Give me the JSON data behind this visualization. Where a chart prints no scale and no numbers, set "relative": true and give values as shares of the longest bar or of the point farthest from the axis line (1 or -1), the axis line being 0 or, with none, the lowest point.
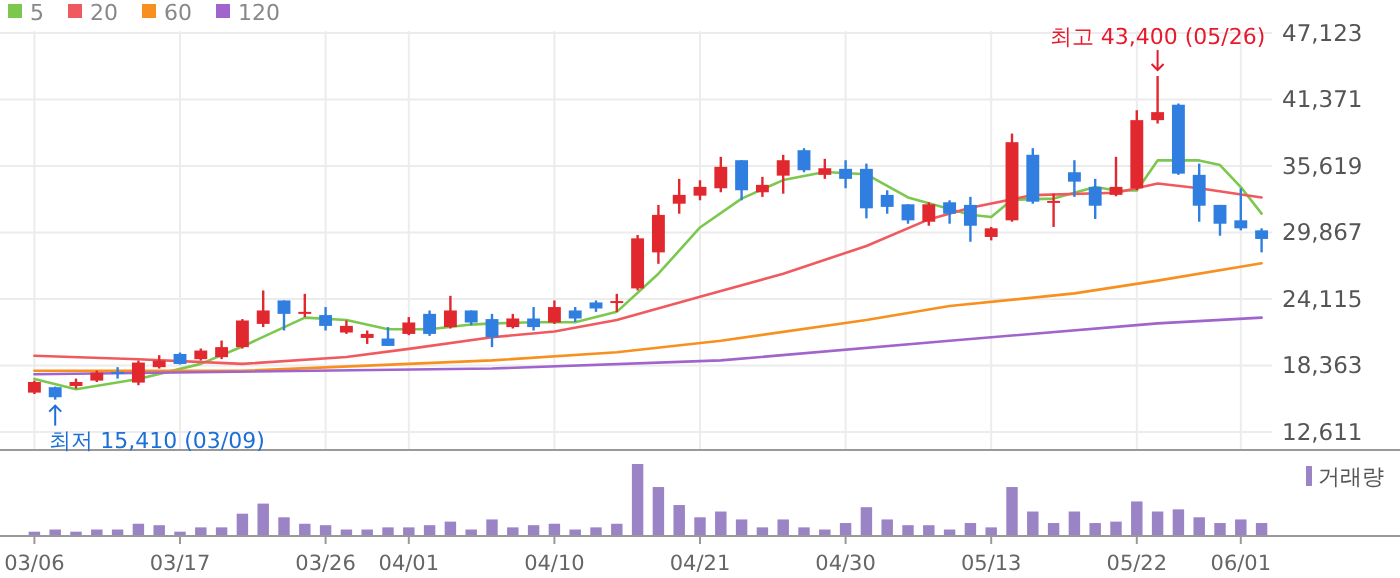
{
  "chart_data": [
    {
      "type": "candlestick",
      "categories": [
        null,
        null,
        null,
        null,
        null,
        null,
        null,
        null,
        null,
        null,
        null,
        null,
        null,
        null,
        null,
        null,
        null,
        null,
        null,
        null,
        null,
        null,
        null,
        null,
        null,
        null,
        null,
        null,
        null,
        null,
        null,
        null,
        null,
        null,
        null,
        null,
        null,
        null,
        null,
        null,
        null,
        null,
        null,
        null,
        null,
        null,
        null,
        null,
        null,
        null,
        null,
        null,
        null,
        null,
        null,
        null,
        null,
        null,
        null,
        null
      ],
      "ohlc": [
        [
          16015,
          17055,
          15893,
          16934
        ],
        [
          16483,
          16535,
          15410,
          15617
        ],
        [
          16587,
          17229,
          16361,
          16934
        ],
        [
          17055,
          17923,
          16934,
          17749
        ],
        [
          17801,
          18217,
          17229,
          17697
        ],
        [
          16882,
          18788,
          16656,
          18615
        ],
        [
          18217,
          19257,
          18096,
          18788
        ],
        [
          19360,
          19482,
          18442,
          18494
        ],
        [
          18910,
          19829,
          18788,
          19655
        ],
        [
          19083,
          20521,
          18910,
          19950
        ],
        [
          19950,
          22375,
          19829,
          22254
        ],
        [
          21960,
          24854,
          21683,
          23121
        ],
        [
          23987,
          23987,
          21387,
          22826
        ],
        [
          22826,
          24560,
          22548,
          23000
        ],
        [
          22722,
          23415,
          21387,
          21786
        ],
        [
          21214,
          22254,
          21092,
          21786
        ],
        [
          20747,
          21387,
          20227,
          21092
        ],
        [
          20695,
          21682,
          20053,
          20053
        ],
        [
          21092,
          22548,
          20989,
          22081
        ],
        [
          22826,
          23121,
          20920,
          21092
        ],
        [
          21683,
          24385,
          21561,
          23121
        ],
        [
          23121,
          23121,
          21856,
          22081
        ],
        [
          22375,
          22826,
          19950,
          20815
        ],
        [
          21683,
          22826,
          21561,
          22427
        ],
        [
          22427,
          23415,
          21387,
          21683
        ],
        [
          22081,
          23987,
          21960,
          23415
        ],
        [
          23121,
          23415,
          22133,
          22427
        ],
        [
          23814,
          23987,
          23000,
          23294
        ],
        [
          23814,
          24560,
          23000,
          23935
        ],
        [
          25027,
          29654,
          24854,
          29359
        ],
        [
          28146,
          32253,
          27158,
          31387
        ],
        [
          32357,
          34506,
          31491,
          33120
        ],
        [
          33051,
          34385,
          32652,
          33813
        ],
        [
          33692,
          36412,
          33345,
          35546
        ],
        [
          36118,
          36118,
          32652,
          33518
        ],
        [
          33345,
          34680,
          32947,
          33987
        ],
        [
          34784,
          36586,
          33224,
          36118
        ],
        [
          36985,
          37158,
          35078,
          35252
        ],
        [
          34853,
          36239,
          34506,
          35424
        ],
        [
          35373,
          36118,
          33692,
          34506
        ],
        [
          35373,
          35824,
          31093,
          31958
        ],
        [
          33120,
          33518,
          31491,
          32080
        ],
        [
          32305,
          32305,
          30624,
          30919
        ],
        [
          30797,
          32478,
          30451,
          32305
        ],
        [
          32478,
          32652,
          30624,
          31491
        ],
        [
          32253,
          32947,
          29065,
          30451
        ],
        [
          29480,
          30347,
          29186,
          30226
        ],
        [
          30919,
          38423,
          30797,
          37678
        ],
        [
          36586,
          37158,
          32357,
          32530
        ],
        [
          32478,
          33224,
          30347,
          32600
        ],
        [
          35078,
          36118,
          32947,
          34264
        ],
        [
          33813,
          34506,
          31040,
          32184
        ],
        [
          33120,
          36412,
          32999,
          33813
        ],
        [
          33692,
          40441,
          33518,
          39584
        ],
        [
          39584,
          43400,
          39290,
          40277
        ],
        [
          40918,
          41023,
          34853,
          34957
        ],
        [
          34853,
          35824,
          30797,
          32184
        ],
        [
          32253,
          32253,
          29584,
          30624
        ],
        [
          30919,
          33692,
          30052,
          30226
        ],
        [
          30052,
          30226,
          28146,
          29307
        ]
      ],
      "colors": [
        "#e0282e",
        "#2f7ee0",
        "#e0282e",
        "#e0282e",
        "#2f7ee0",
        "#e0282e",
        "#e0282e",
        "#2f7ee0",
        "#e0282e",
        "#e0282e",
        "#e0282e",
        "#e0282e",
        "#2f7ee0",
        "#e0282e",
        "#2f7ee0",
        "#e0282e",
        "#e0282e",
        "#2f7ee0",
        "#e0282e",
        "#2f7ee0",
        "#e0282e",
        "#2f7ee0",
        "#2f7ee0",
        "#e0282e",
        "#2f7ee0",
        "#e0282e",
        "#2f7ee0",
        "#2f7ee0",
        "#e0282e",
        "#e0282e",
        "#e0282e",
        "#e0282e",
        "#e0282e",
        "#e0282e",
        "#2f7ee0",
        "#e0282e",
        "#e0282e",
        "#2f7ee0",
        "#e0282e",
        "#2f7ee0",
        "#2f7ee0",
        "#2f7ee0",
        "#2f7ee0",
        "#e0282e",
        "#2f7ee0",
        "#2f7ee0",
        "#e0282e",
        "#e0282e",
        "#2f7ee0",
        "#e0282e",
        "#2f7ee0",
        "#2f7ee0",
        "#e0282e",
        "#e0282e",
        "#e0282e",
        "#2f7ee0",
        "#2f7ee0",
        "#2f7ee0",
        "#2f7ee0",
        "#2f7ee0"
      ],
      "series": [
        {
          "name": "5",
          "type": "line",
          "color": "#7cc84e",
          "values": [
            17200,
            null,
            16300,
            null,
            null,
            17200,
            null,
            null,
            18500,
            null,
            20000,
            null,
            null,
            22500,
            null,
            22300,
            null,
            21500,
            null,
            21500,
            null,
            21900,
            22000,
            null,
            22100,
            null,
            22100,
            null,
            23000,
            null,
            26300,
            null,
            30300,
            null,
            32800,
            null,
            34400,
            null,
            35100,
            null,
            34900,
            null,
            32900,
            32400,
            null,
            31400,
            31200,
            32700,
            null,
            32800,
            null,
            33800,
            33500,
            33500,
            36100,
            null,
            36100,
            35700,
            33800,
            31500
          ]
        },
        {
          "name": "20",
          "type": "line",
          "color": "#f05a5e",
          "values": [
            19200,
            null,
            null,
            null,
            null,
            18900,
            null,
            null,
            null,
            null,
            18500,
            null,
            null,
            null,
            null,
            19100,
            null,
            null,
            19800,
            null,
            null,
            null,
            20800,
            null,
            null,
            21300,
            null,
            null,
            22300,
            null,
            null,
            null,
            24300,
            null,
            null,
            null,
            26300,
            null,
            null,
            null,
            28700,
            null,
            null,
            31000,
            null,
            32000,
            null,
            null,
            33100,
            null,
            null,
            null,
            33300,
            null,
            34100,
            null,
            33700,
            null,
            null,
            32900
          ]
        },
        {
          "name": "60",
          "type": "line",
          "color": "#f7901e",
          "values": [
            17900,
            null,
            null,
            null,
            null,
            null,
            null,
            null,
            null,
            null,
            17900,
            null,
            null,
            null,
            null,
            null,
            null,
            null,
            null,
            null,
            null,
            null,
            18800,
            null,
            null,
            null,
            null,
            null,
            19500,
            null,
            null,
            null,
            null,
            20500,
            null,
            null,
            null,
            null,
            null,
            null,
            22300,
            null,
            null,
            null,
            23500,
            null,
            null,
            null,
            null,
            null,
            24600,
            null,
            null,
            null,
            25700,
            null,
            null,
            null,
            null,
            27200
          ]
        },
        {
          "name": "120",
          "type": "line",
          "color": "#a064cc",
          "values": [
            17600,
            null,
            null,
            null,
            null,
            null,
            null,
            null,
            null,
            null,
            null,
            null,
            null,
            null,
            null,
            null,
            null,
            null,
            null,
            null,
            null,
            null,
            18100,
            null,
            null,
            null,
            null,
            null,
            null,
            null,
            null,
            null,
            null,
            18800,
            null,
            null,
            null,
            null,
            null,
            null,
            null,
            null,
            null,
            null,
            20500,
            null,
            null,
            null,
            null,
            null,
            null,
            null,
            null,
            null,
            22000,
            null,
            null,
            null,
            null,
            22500
          ]
        }
      ],
      "ylim": [
        11051,
        47123
      ],
      "yticks": [
        {
          "value": 12611,
          "label": "12,611"
        },
        {
          "value": 18363,
          "label": "18,363"
        },
        {
          "value": 24115,
          "label": "24,115"
        },
        {
          "value": 29867,
          "label": "29,867"
        },
        {
          "value": 35619,
          "label": "35,619"
        },
        {
          "value": 41371,
          "label": "41,371"
        },
        {
          "value": 47123,
          "label": "47,123"
        }
      ],
      "grid": true,
      "legend": "top left",
      "tick_labels": "y",
      "annotations": [
        {
          "text": "최고 43,400 (05/26)",
          "y": 43400
        },
        "최저 15,410 (03/09)"
      ]
    },
    {
      "type": "bar",
      "relative": true,
      "categories": [
        "03/06",
        null,
        null,
        null,
        null,
        null,
        null,
        "03/17",
        null,
        null,
        null,
        null,
        null,
        null,
        "03/26",
        null,
        null,
        null,
        "04/01",
        null,
        null,
        null,
        null,
        null,
        null,
        "04/10",
        null,
        null,
        null,
        null,
        null,
        null,
        "04/21",
        null,
        null,
        null,
        null,
        null,
        null,
        "04/30",
        null,
        null,
        null,
        null,
        null,
        null,
        "05/13",
        null,
        null,
        null,
        null,
        null,
        null,
        "05/22",
        null,
        null,
        null,
        null,
        "06/01",
        null
      ],
      "series": [
        {
          "name": "거래량",
          "color": "#9b84c6",
          "values": [
            0.06,
            0.09,
            0.06,
            0.09,
            0.09,
            0.17,
            0.15,
            0.06,
            0.12,
            0.12,
            0.31,
            0.45,
            0.26,
            0.17,
            0.15,
            0.09,
            0.09,
            0.12,
            0.12,
            0.15,
            0.2,
            0.09,
            0.23,
            0.12,
            0.15,
            0.17,
            0.09,
            0.12,
            0.17,
            1,
            0.68,
            0.43,
            0.26,
            0.34,
            0.23,
            0.12,
            0.23,
            0.12,
            0.09,
            0.18,
            0.4,
            0.23,
            0.15,
            0.15,
            0.09,
            0.18,
            0.12,
            0.68,
            0.34,
            0.18,
            0.34,
            0.18,
            0.2,
            0.48,
            0.34,
            0.37,
            0.26,
            0.18,
            0.23,
            0.18
          ]
        }
      ],
      "legend": "top right",
      "tick_labels": "x"
    }
  ]
}
